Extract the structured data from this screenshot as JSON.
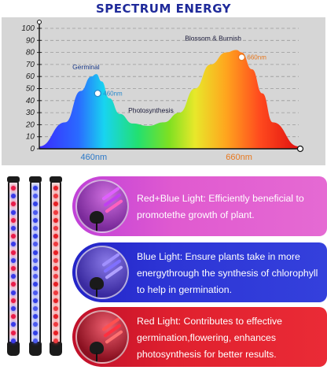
{
  "title": "SPECTRUM ENERGY",
  "chart_data": {
    "type": "area",
    "title": "SPECTRUM ENERGY",
    "yticks": [
      0,
      10,
      20,
      30,
      40,
      50,
      60,
      70,
      80,
      90,
      100
    ],
    "ylim": [
      0,
      100
    ],
    "x": [
      0,
      10,
      16,
      20,
      22,
      24,
      27,
      31,
      36,
      42,
      48,
      54,
      60,
      66,
      72,
      76,
      78,
      82,
      86,
      90,
      100
    ],
    "y": [
      2,
      22,
      48,
      60,
      62,
      56,
      42,
      29,
      21,
      19,
      22,
      30,
      50,
      70,
      80,
      82,
      80,
      66,
      46,
      22,
      2
    ],
    "xlabels": [
      {
        "text": "460nm",
        "pos": 21,
        "color": "#2a78c8"
      },
      {
        "text": "660nm",
        "pos": 77,
        "color": "#e8781e"
      }
    ],
    "annotations": [
      {
        "text": "Germinal",
        "x": 18,
        "y": 66,
        "color": "#1a3a8a"
      },
      {
        "text": "Photosynthesis",
        "x": 43,
        "y": 30,
        "color": "#1a1a3a"
      },
      {
        "text": "Blossom & Burnish",
        "x": 67,
        "y": 90,
        "color": "#1a1a3a"
      }
    ],
    "markers": [
      {
        "text": "460nm",
        "x": 22.5,
        "y": 46,
        "color": "#2a8acb"
      },
      {
        "text": "660nm",
        "x": 78,
        "y": 76,
        "color": "#e8781e"
      }
    ]
  },
  "panels": [
    {
      "text": "Red+Blue Light: Efficiently beneficial to promotethe growth of plant."
    },
    {
      "text": "Blue Light: Ensure plants take in more energythrough the synthesis of chlorophyll to help in germination."
    },
    {
      "text": "Red Light: Contributes to effective germination,flowering, enhances photosynthesis for better results."
    }
  ]
}
